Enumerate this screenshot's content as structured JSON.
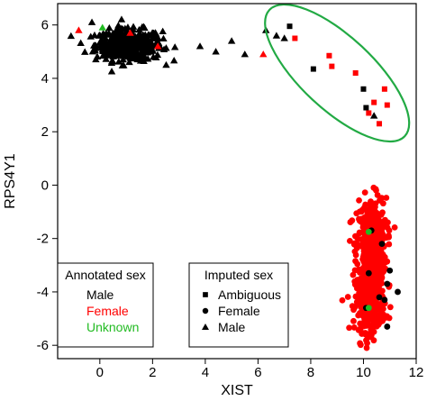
{
  "chart_data": {
    "type": "scatter",
    "xlabel": "XIST",
    "ylabel": "RPS4Y1",
    "xlim": [
      -1.6,
      12.0
    ],
    "ylim": [
      -6.5,
      6.8
    ],
    "x_ticks": [
      0,
      2,
      4,
      6,
      8,
      10,
      12
    ],
    "x_tick_labels": [
      "0",
      "2",
      "4",
      "6",
      "8",
      "10",
      "12"
    ],
    "y_ticks": [
      -6,
      -4,
      -2,
      0,
      2,
      4,
      6
    ],
    "y_tick_labels": [
      "-6",
      "-4",
      "-2",
      "0",
      "2",
      "4",
      "6"
    ],
    "colors": {
      "male": "#000000",
      "female": "#ff0000",
      "unknown": "#22bb22",
      "ellipse": "#22aa44"
    },
    "marker_shapes": {
      "Ambiguous": "square",
      "Female": "circle",
      "Male": "triangle"
    },
    "clusters": [
      {
        "imputed": "Male",
        "annotated": "Male",
        "x_center": 1.1,
        "y_center": 5.25,
        "x_spread": 1.8,
        "y_spread": 0.65,
        "count": 420
      },
      {
        "imputed": "Female",
        "annotated": "Female",
        "x_center": 10.3,
        "y_center": -2.3,
        "x_spread": 0.8,
        "y_spread": 2.0,
        "count": 450
      },
      {
        "imputed": "Female",
        "annotated": "Female",
        "x_center": 10.25,
        "y_center": -4.4,
        "x_spread": 0.8,
        "y_spread": 1.2,
        "count": 300
      }
    ],
    "series": [
      {
        "imputed": "Male",
        "annotated": "Male",
        "points": [
          [
            -0.3,
            6.1
          ],
          [
            3.8,
            5.2
          ],
          [
            4.4,
            5.0
          ],
          [
            5.0,
            5.4
          ],
          [
            5.5,
            4.9
          ],
          [
            6.3,
            5.8
          ],
          [
            6.7,
            5.6
          ],
          [
            7.0,
            5.5
          ],
          [
            10.4,
            2.6
          ]
        ]
      },
      {
        "imputed": "Male",
        "annotated": "Female",
        "points": [
          [
            -0.8,
            5.8
          ],
          [
            1.15,
            5.7
          ],
          [
            2.2,
            5.2
          ],
          [
            6.2,
            4.9
          ]
        ]
      },
      {
        "imputed": "Male",
        "annotated": "Unknown",
        "points": [
          [
            0.1,
            5.9
          ]
        ]
      },
      {
        "imputed": "Ambiguous",
        "annotated": "Male",
        "points": [
          [
            7.2,
            5.95
          ],
          [
            8.1,
            4.35
          ],
          [
            10.0,
            3.6
          ],
          [
            10.1,
            2.9
          ]
        ]
      },
      {
        "imputed": "Ambiguous",
        "annotated": "Female",
        "points": [
          [
            7.4,
            5.5
          ],
          [
            8.7,
            4.85
          ],
          [
            8.8,
            4.45
          ],
          [
            9.7,
            4.2
          ],
          [
            10.2,
            2.7
          ],
          [
            10.4,
            3.1
          ],
          [
            10.6,
            2.3
          ],
          [
            10.8,
            3.6
          ],
          [
            10.9,
            3.0
          ]
        ]
      },
      {
        "imputed": "Female",
        "annotated": "Male",
        "points": [
          [
            10.3,
            -1.7
          ],
          [
            10.7,
            -2.2
          ],
          [
            10.2,
            -3.3
          ],
          [
            10.9,
            -3.7
          ],
          [
            10.6,
            -4.2
          ],
          [
            10.1,
            -4.6
          ],
          [
            10.9,
            -5.3
          ],
          [
            11.3,
            -4.0
          ],
          [
            10.8,
            -4.3
          ],
          [
            11.0,
            -3.2
          ]
        ]
      },
      {
        "imputed": "Female",
        "annotated": "Unknown",
        "points": [
          [
            10.2,
            -1.75
          ],
          [
            10.2,
            -4.6
          ]
        ]
      }
    ],
    "ellipse": {
      "cx": 9.0,
      "cy": 4.2,
      "rx": 4.5,
      "ry": 0.85,
      "angle_deg": 43
    },
    "legend_annotated": {
      "title": "Annotated sex",
      "entries": [
        {
          "label": "Male",
          "color": "#000000"
        },
        {
          "label": "Female",
          "color": "#ff0000"
        },
        {
          "label": "Unknown",
          "color": "#22bb22"
        }
      ]
    },
    "legend_imputed": {
      "title": "Imputed sex",
      "entries": [
        {
          "label": "Ambiguous",
          "shape": "square"
        },
        {
          "label": "Female",
          "shape": "circle"
        },
        {
          "label": "Male",
          "shape": "triangle"
        }
      ]
    }
  }
}
